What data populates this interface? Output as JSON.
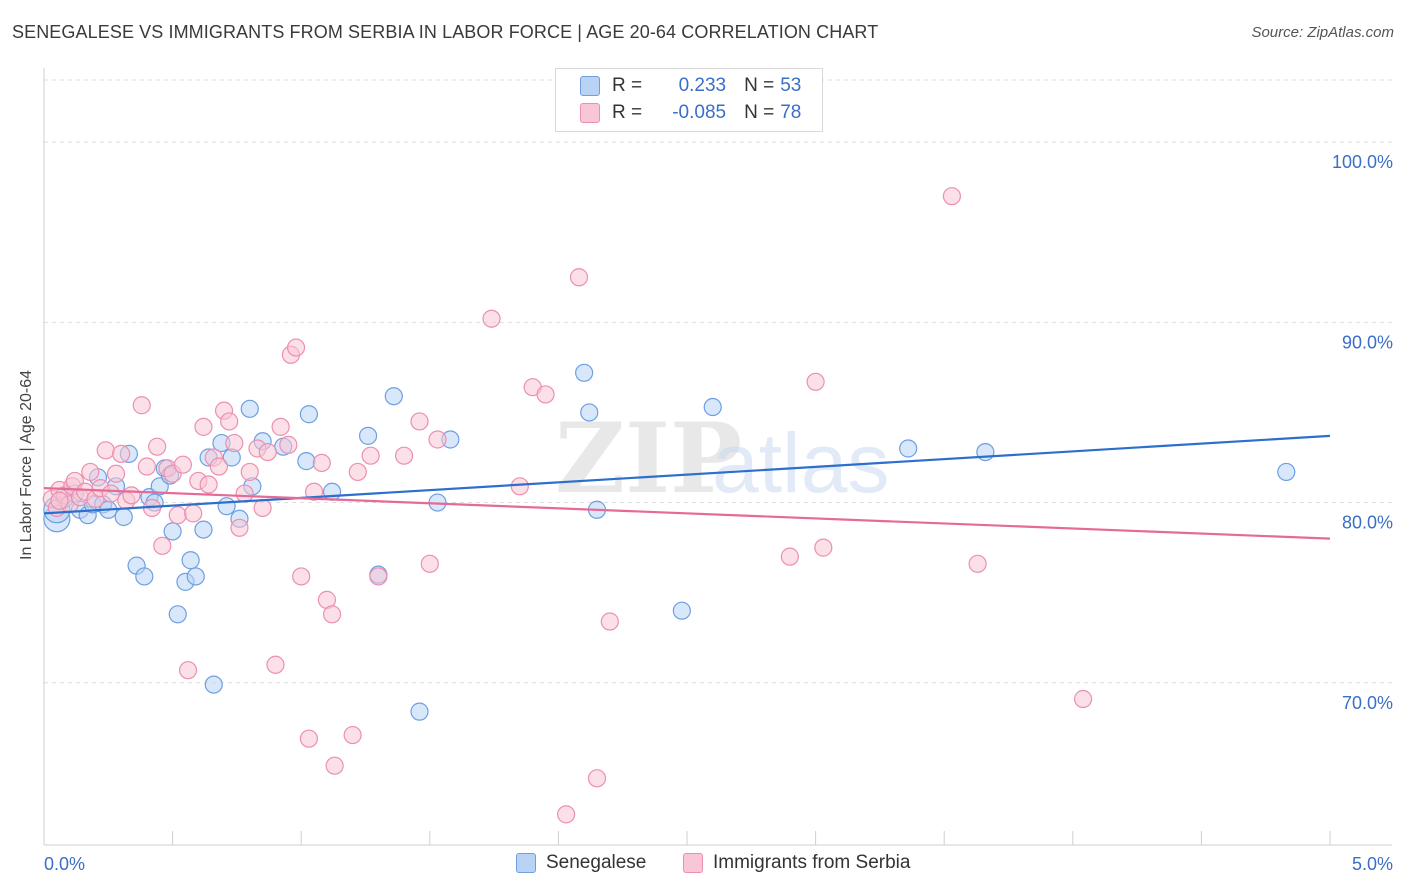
{
  "title": "SENEGALESE VS IMMIGRANTS FROM SERBIA IN LABOR FORCE | AGE 20-64 CORRELATION CHART",
  "source": "Source: ZipAtlas.com",
  "watermark": {
    "part1": "ZIP",
    "part2": "atlas"
  },
  "legend": {
    "rows": [
      {
        "r_label": "R = ",
        "r_value": "0.233",
        "n_label": "N = ",
        "n_value": "53"
      },
      {
        "r_label": "R = ",
        "r_value": "-0.085",
        "n_label": "N = ",
        "n_value": "78"
      }
    ]
  },
  "colors": {
    "blue_fill": "#b9d3f5",
    "blue_stroke": "#6e9fe0",
    "blue_line": "#2d6fcc",
    "pink_fill": "#f8c6d6",
    "pink_stroke": "#ec8fb0",
    "pink_line": "#e56a97",
    "tick_text": "#3a6fc7",
    "grid": "#dddddd"
  },
  "chart_data": {
    "type": "scatter",
    "title": "SENEGALESE VS IMMIGRANTS FROM SERBIA IN LABOR FORCE | AGE 20-64 CORRELATION CHART",
    "xlabel": "",
    "ylabel": "In Labor Force | Age 20-64",
    "xlim": [
      0.0,
      5.0
    ],
    "ylim": [
      61.0,
      104.0
    ],
    "x_tick_labels": [
      "0.0%",
      "5.0%"
    ],
    "y_ticks": [
      70.0,
      80.0,
      90.0,
      100.0
    ],
    "y_tick_labels": [
      "70.0%",
      "80.0%",
      "90.0%",
      "100.0%"
    ],
    "grid": "horizontal dashed",
    "legend_position": "top-center",
    "series": [
      {
        "name": "Senegalese",
        "trend": {
          "x": [
            0.0,
            5.0
          ],
          "y": [
            79.4,
            83.7
          ]
        },
        "points": [
          {
            "x": 0.05,
            "y": 79.1,
            "big": true
          },
          {
            "x": 0.05,
            "y": 79.6,
            "big": true
          },
          {
            "x": 0.08,
            "y": 80.2
          },
          {
            "x": 0.12,
            "y": 80.5
          },
          {
            "x": 0.14,
            "y": 79.6
          },
          {
            "x": 0.17,
            "y": 79.3
          },
          {
            "x": 0.19,
            "y": 79.9
          },
          {
            "x": 0.21,
            "y": 81.4
          },
          {
            "x": 0.23,
            "y": 79.9
          },
          {
            "x": 0.25,
            "y": 79.6
          },
          {
            "x": 0.28,
            "y": 80.9
          },
          {
            "x": 0.31,
            "y": 79.2
          },
          {
            "x": 0.33,
            "y": 82.7
          },
          {
            "x": 0.36,
            "y": 76.5
          },
          {
            "x": 0.39,
            "y": 75.9
          },
          {
            "x": 0.41,
            "y": 80.3
          },
          {
            "x": 0.43,
            "y": 80.0
          },
          {
            "x": 0.45,
            "y": 80.9
          },
          {
            "x": 0.47,
            "y": 81.9
          },
          {
            "x": 0.49,
            "y": 81.5
          },
          {
            "x": 0.5,
            "y": 78.4
          },
          {
            "x": 0.52,
            "y": 73.8
          },
          {
            "x": 0.55,
            "y": 75.6
          },
          {
            "x": 0.57,
            "y": 76.8
          },
          {
            "x": 0.59,
            "y": 75.9
          },
          {
            "x": 0.62,
            "y": 78.5
          },
          {
            "x": 0.64,
            "y": 82.5
          },
          {
            "x": 0.66,
            "y": 69.9
          },
          {
            "x": 0.69,
            "y": 83.3
          },
          {
            "x": 0.71,
            "y": 79.8
          },
          {
            "x": 0.73,
            "y": 82.5
          },
          {
            "x": 0.76,
            "y": 79.1
          },
          {
            "x": 0.8,
            "y": 85.2
          },
          {
            "x": 0.81,
            "y": 80.9
          },
          {
            "x": 0.85,
            "y": 83.4
          },
          {
            "x": 0.93,
            "y": 83.1
          },
          {
            "x": 1.02,
            "y": 82.3
          },
          {
            "x": 1.03,
            "y": 84.9
          },
          {
            "x": 1.12,
            "y": 80.6
          },
          {
            "x": 1.26,
            "y": 83.7
          },
          {
            "x": 1.3,
            "y": 76.0
          },
          {
            "x": 1.36,
            "y": 85.9
          },
          {
            "x": 1.46,
            "y": 68.4
          },
          {
            "x": 1.53,
            "y": 80.0
          },
          {
            "x": 1.58,
            "y": 83.5
          },
          {
            "x": 2.1,
            "y": 87.2
          },
          {
            "x": 2.12,
            "y": 85.0
          },
          {
            "x": 2.15,
            "y": 79.6
          },
          {
            "x": 2.48,
            "y": 74.0
          },
          {
            "x": 2.6,
            "y": 85.3
          },
          {
            "x": 3.36,
            "y": 83.0
          },
          {
            "x": 3.66,
            "y": 82.8
          },
          {
            "x": 4.83,
            "y": 81.7
          }
        ]
      },
      {
        "name": "Immigrants from Serbia",
        "trend": {
          "x": [
            0.0,
            5.0
          ],
          "y": [
            80.8,
            78.0
          ]
        },
        "points": [
          {
            "x": 0.03,
            "y": 80.2
          },
          {
            "x": 0.05,
            "y": 79.7
          },
          {
            "x": 0.06,
            "y": 80.7
          },
          {
            "x": 0.08,
            "y": 80.4
          },
          {
            "x": 0.1,
            "y": 79.9
          },
          {
            "x": 0.11,
            "y": 80.9
          },
          {
            "x": 0.12,
            "y": 81.2
          },
          {
            "x": 0.14,
            "y": 80.3
          },
          {
            "x": 0.16,
            "y": 80.6
          },
          {
            "x": 0.18,
            "y": 81.7
          },
          {
            "x": 0.2,
            "y": 80.2
          },
          {
            "x": 0.22,
            "y": 80.8
          },
          {
            "x": 0.24,
            "y": 82.9
          },
          {
            "x": 0.26,
            "y": 80.5
          },
          {
            "x": 0.28,
            "y": 81.6
          },
          {
            "x": 0.3,
            "y": 82.7
          },
          {
            "x": 0.32,
            "y": 80.1
          },
          {
            "x": 0.34,
            "y": 80.4
          },
          {
            "x": 0.38,
            "y": 85.4
          },
          {
            "x": 0.4,
            "y": 82.0
          },
          {
            "x": 0.42,
            "y": 79.7
          },
          {
            "x": 0.44,
            "y": 83.1
          },
          {
            "x": 0.46,
            "y": 77.6
          },
          {
            "x": 0.48,
            "y": 81.9
          },
          {
            "x": 0.5,
            "y": 81.6
          },
          {
            "x": 0.52,
            "y": 79.3
          },
          {
            "x": 0.54,
            "y": 82.1
          },
          {
            "x": 0.56,
            "y": 70.7
          },
          {
            "x": 0.58,
            "y": 79.4
          },
          {
            "x": 0.6,
            "y": 81.2
          },
          {
            "x": 0.62,
            "y": 84.2
          },
          {
            "x": 0.64,
            "y": 81.0
          },
          {
            "x": 0.66,
            "y": 82.5
          },
          {
            "x": 0.68,
            "y": 82.0
          },
          {
            "x": 0.7,
            "y": 85.1
          },
          {
            "x": 0.72,
            "y": 84.5
          },
          {
            "x": 0.74,
            "y": 83.3
          },
          {
            "x": 0.76,
            "y": 78.6
          },
          {
            "x": 0.78,
            "y": 80.5
          },
          {
            "x": 0.8,
            "y": 81.7
          },
          {
            "x": 0.83,
            "y": 83.0
          },
          {
            "x": 0.85,
            "y": 79.7
          },
          {
            "x": 0.87,
            "y": 82.8
          },
          {
            "x": 0.9,
            "y": 71.0
          },
          {
            "x": 0.92,
            "y": 84.2
          },
          {
            "x": 0.95,
            "y": 83.2
          },
          {
            "x": 0.96,
            "y": 88.2
          },
          {
            "x": 0.98,
            "y": 88.6
          },
          {
            "x": 1.0,
            "y": 75.9
          },
          {
            "x": 1.03,
            "y": 66.9
          },
          {
            "x": 1.05,
            "y": 80.6
          },
          {
            "x": 1.08,
            "y": 82.2
          },
          {
            "x": 1.1,
            "y": 74.6
          },
          {
            "x": 1.12,
            "y": 73.8
          },
          {
            "x": 1.13,
            "y": 65.4
          },
          {
            "x": 1.2,
            "y": 67.1
          },
          {
            "x": 1.22,
            "y": 81.7
          },
          {
            "x": 1.27,
            "y": 82.6
          },
          {
            "x": 1.3,
            "y": 75.9
          },
          {
            "x": 1.4,
            "y": 82.6
          },
          {
            "x": 1.46,
            "y": 84.5
          },
          {
            "x": 1.5,
            "y": 76.6
          },
          {
            "x": 1.53,
            "y": 83.5
          },
          {
            "x": 1.74,
            "y": 90.2
          },
          {
            "x": 1.85,
            "y": 80.9
          },
          {
            "x": 1.9,
            "y": 86.4
          },
          {
            "x": 1.95,
            "y": 86.0
          },
          {
            "x": 2.03,
            "y": 62.7
          },
          {
            "x": 2.08,
            "y": 92.5
          },
          {
            "x": 2.15,
            "y": 64.7
          },
          {
            "x": 2.2,
            "y": 73.4
          },
          {
            "x": 2.9,
            "y": 77.0
          },
          {
            "x": 3.0,
            "y": 86.7
          },
          {
            "x": 3.03,
            "y": 77.5
          },
          {
            "x": 3.53,
            "y": 97.0
          },
          {
            "x": 3.63,
            "y": 76.6
          },
          {
            "x": 4.04,
            "y": 69.1
          },
          {
            "x": 0.06,
            "y": 80.1
          }
        ]
      }
    ]
  }
}
